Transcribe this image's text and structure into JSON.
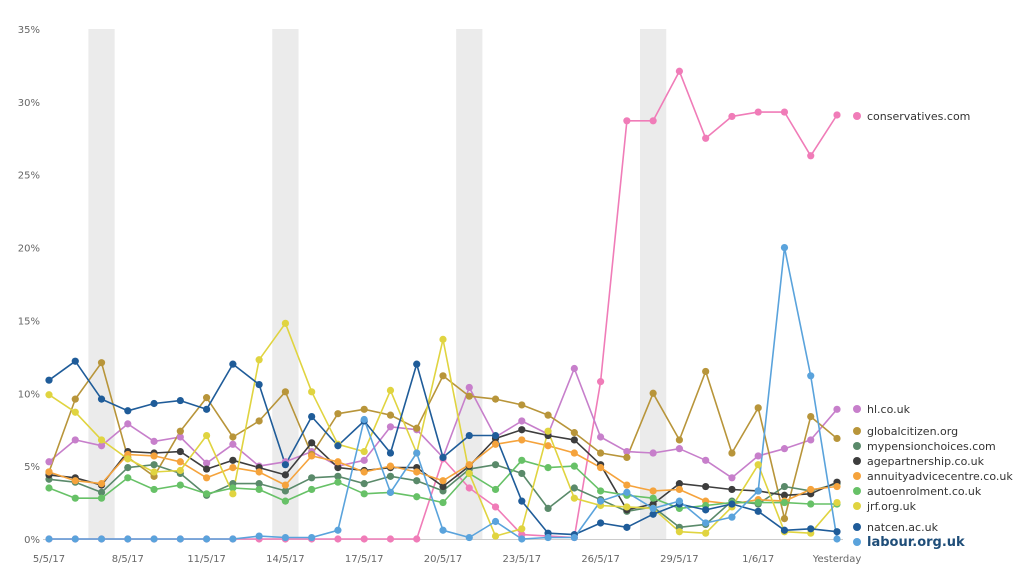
{
  "chart_data": {
    "type": "line",
    "ylim": [
      0,
      35
    ],
    "y_ticks": [
      0,
      5,
      10,
      15,
      20,
      25,
      30,
      35
    ],
    "y_tick_labels": [
      "0%",
      "5%",
      "10%",
      "15%",
      "20%",
      "25%",
      "30%",
      "35%"
    ],
    "x_tick_labels": [
      "5/5/17",
      "8/5/17",
      "11/5/17",
      "14/5/17",
      "17/5/17",
      "20/5/17",
      "23/5/17",
      "26/5/17",
      "29/5/17",
      "1/6/17",
      "Yesterday"
    ],
    "x": [
      "5/5/17",
      "6/5/17",
      "7/5/17",
      "8/5/17",
      "9/5/17",
      "10/5/17",
      "11/5/17",
      "12/5/17",
      "13/5/17",
      "14/5/17",
      "15/5/17",
      "16/5/17",
      "17/5/17",
      "18/5/17",
      "19/5/17",
      "20/5/17",
      "21/5/17",
      "22/5/17",
      "23/5/17",
      "24/5/17",
      "25/5/17",
      "26/5/17",
      "27/5/17",
      "28/5/17",
      "29/5/17",
      "30/5/17",
      "31/5/17",
      "1/6/17",
      "2/6/17",
      "3/6/17",
      "Yesterday"
    ],
    "shaded_periods": [
      [
        "6/5/17",
        "7/5/17"
      ],
      [
        "13/5/17",
        "14/5/17"
      ],
      [
        "20/5/17",
        "21/5/17"
      ],
      [
        "27/5/17",
        "28/5/17"
      ]
    ],
    "grid": false,
    "legend_position": "right",
    "series": [
      {
        "name": "conservatives.com",
        "color": "#f07cb8",
        "values": [
          0,
          0,
          0,
          0,
          0,
          0,
          0,
          0,
          0,
          0,
          0,
          0,
          0,
          0,
          0,
          5.5,
          3.5,
          2.2,
          0.3,
          0.2,
          0.1,
          10.8,
          28.7,
          28.7,
          32.1,
          27.5,
          29.0,
          29.3,
          29.3,
          26.3,
          29.1
        ]
      },
      {
        "name": "hl.co.uk",
        "color": "#c77fcb",
        "values": [
          5.3,
          6.8,
          6.4,
          7.9,
          6.7,
          7.0,
          5.2,
          6.5,
          5.0,
          5.3,
          6.0,
          5.0,
          5.4,
          7.7,
          7.5,
          5.6,
          10.4,
          7.0,
          8.1,
          7.2,
          11.7,
          7.0,
          6.0,
          5.9,
          6.2,
          5.4,
          4.2,
          5.7,
          6.2,
          6.8,
          8.9
        ]
      },
      {
        "name": "globalcitizen.org",
        "color": "#b8953a",
        "values": [
          4.6,
          9.6,
          12.1,
          5.6,
          4.3,
          7.4,
          9.7,
          7.0,
          8.1,
          10.1,
          5.8,
          8.6,
          8.9,
          8.5,
          7.6,
          11.2,
          9.8,
          9.6,
          9.2,
          8.5,
          7.3,
          5.9,
          5.6,
          10.0,
          6.8,
          11.5,
          5.9,
          9.0,
          1.4,
          8.4,
          6.9
        ]
      },
      {
        "name": "mypensionchoices.com",
        "color": "#5a8a6a",
        "values": [
          4.1,
          3.9,
          3.2,
          4.9,
          5.1,
          4.5,
          3.0,
          3.8,
          3.8,
          3.3,
          4.2,
          4.3,
          3.8,
          4.3,
          4.0,
          3.3,
          4.8,
          5.1,
          4.5,
          2.1,
          3.5,
          2.7,
          1.9,
          2.2,
          0.8,
          1.0,
          2.6,
          2.4,
          3.6,
          3.3,
          3.8
        ]
      },
      {
        "name": "agepartnership.co.uk",
        "color": "#3d3d3d",
        "values": [
          4.4,
          4.2,
          3.7,
          6.0,
          5.9,
          6.0,
          4.8,
          5.4,
          4.9,
          4.4,
          6.6,
          4.9,
          4.7,
          4.9,
          4.9,
          3.6,
          5.0,
          6.9,
          7.5,
          7.1,
          6.8,
          5.1,
          2.0,
          2.4,
          3.8,
          3.6,
          3.4,
          3.3,
          3.0,
          3.1,
          3.9
        ]
      },
      {
        "name": "annuityadvicecentre.co.uk",
        "color": "#f5a33c",
        "values": [
          4.6,
          4.0,
          3.8,
          5.8,
          5.7,
          5.3,
          4.2,
          4.9,
          4.6,
          3.7,
          5.7,
          5.3,
          4.6,
          5.0,
          4.6,
          4.0,
          5.1,
          6.5,
          6.8,
          6.4,
          5.9,
          4.9,
          3.7,
          3.3,
          3.4,
          2.6,
          2.4,
          2.7,
          2.6,
          3.4,
          3.6
        ]
      },
      {
        "name": "autoenrolment.co.uk",
        "color": "#67c167",
        "values": [
          3.5,
          2.8,
          2.8,
          4.2,
          3.4,
          3.7,
          3.1,
          3.5,
          3.4,
          2.6,
          3.4,
          3.9,
          3.1,
          3.2,
          2.9,
          2.5,
          4.5,
          3.4,
          5.4,
          4.9,
          5.0,
          3.3,
          3.0,
          2.8,
          2.1,
          2.3,
          2.5,
          2.5,
          2.5,
          2.4,
          2.4
        ]
      },
      {
        "name": "jrf.org.uk",
        "color": "#e0d440",
        "values": [
          9.9,
          8.7,
          6.8,
          5.5,
          4.6,
          4.7,
          7.1,
          3.1,
          12.3,
          14.8,
          10.1,
          6.5,
          6.0,
          10.2,
          5.9,
          13.7,
          4.5,
          0.2,
          0.7,
          7.4,
          2.8,
          2.3,
          2.2,
          2.1,
          0.5,
          0.4,
          2.2,
          5.1,
          0.5,
          0.4,
          2.5
        ]
      },
      {
        "name": "natcen.ac.uk",
        "color": "#1f5c99",
        "values": [
          10.9,
          12.2,
          9.6,
          8.8,
          9.3,
          9.5,
          8.9,
          12.0,
          10.6,
          5.1,
          8.4,
          6.4,
          8.1,
          5.9,
          12.0,
          5.6,
          7.1,
          7.1,
          2.6,
          0.4,
          0.3,
          1.1,
          0.8,
          1.7,
          2.4,
          2.0,
          2.4,
          1.9,
          0.6,
          0.7,
          0.5
        ]
      },
      {
        "name": "labour.org.uk",
        "color": "#5aa3dc",
        "values": [
          0,
          0,
          0,
          0,
          0,
          0,
          0,
          0,
          0.2,
          0.1,
          0.1,
          0.6,
          8.2,
          3.2,
          5.9,
          0.6,
          0.1,
          1.2,
          0,
          0.1,
          0.1,
          2.6,
          3.2,
          2.1,
          2.6,
          1.1,
          1.5,
          3.3,
          20.0,
          11.2,
          0
        ]
      }
    ],
    "legend_order": [
      "conservatives.com",
      "hl.co.uk",
      "globalcitizen.org",
      "mypensionchoices.com",
      "agepartnership.co.uk",
      "annuityadvicecentre.co.uk",
      "autoenrolment.co.uk",
      "jrf.org.uk",
      "natcen.ac.uk",
      "labour.org.uk"
    ],
    "highlight_series": "labour.org.uk"
  }
}
